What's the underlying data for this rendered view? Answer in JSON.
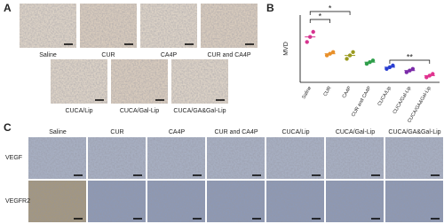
{
  "panel_labels": [
    "A",
    "B",
    "C"
  ],
  "panel_a": {
    "labels": [
      "Saline",
      "CUR",
      "CA4P",
      "CUR and CA4P",
      "CUCA/Lip",
      "CUCA/Gal-Lip",
      "CUCA/GA&Gal-Lip"
    ]
  },
  "chart_data": {
    "type": "dotplot",
    "y_label": "MVD",
    "categories": [
      "Saline",
      "CUR",
      "CA4P",
      "CUR and CA4P",
      "CUCA/Lip",
      "CUCA/Gal-Lip",
      "CUCA/GA&Gal-Lip"
    ],
    "values": [
      [
        12,
        13.5,
        15
      ],
      [
        8,
        8.5,
        9
      ],
      [
        7,
        8,
        9
      ],
      [
        5.5,
        6,
        6.5
      ],
      [
        4,
        4.5,
        5
      ],
      [
        3,
        3.5,
        4
      ],
      [
        1.5,
        2,
        2.5
      ]
    ],
    "means": [
      13.5,
      8.5,
      8,
      6,
      4.5,
      3.5,
      2
    ],
    "colors": [
      "#d6338f",
      "#e8902a",
      "#9a9a1e",
      "#2e9e4a",
      "#2a3fd1",
      "#7a2aa8",
      "#e0338f"
    ],
    "ylim": [
      0,
      20
    ],
    "annotations": [
      {
        "text": "*",
        "between": [
          "Saline",
          "CUR"
        ]
      },
      {
        "text": "*",
        "between": [
          "Saline",
          "CA4P"
        ]
      },
      {
        "text": "**",
        "between": [
          "CUCA/Lip",
          "CUCA/GA&Gal-Lip"
        ]
      }
    ]
  },
  "panel_c": {
    "columns": [
      "Saline",
      "CUR",
      "CA4P",
      "CUR and CA4P",
      "CUCA/Lip",
      "CUCA/Gal-Lip",
      "CUCA/GA&Gal-Lip"
    ],
    "rows": [
      "VEGF",
      "VEGFR2"
    ]
  }
}
